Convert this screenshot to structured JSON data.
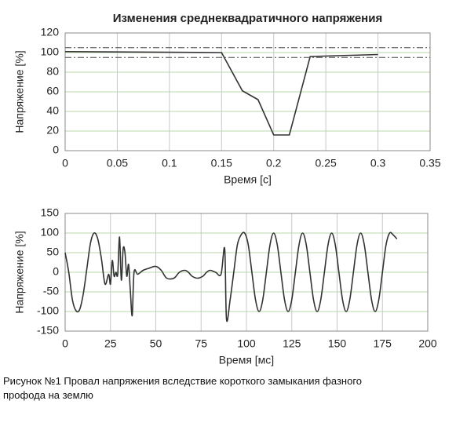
{
  "chart_data": [
    {
      "type": "line",
      "title": "Изменения среднеквадратичного напряжения",
      "xlabel": "Время [с]",
      "ylabel": "Напряжение [%]",
      "xlim": [
        0,
        0.35
      ],
      "xticks": [
        0,
        0.05,
        0.1,
        0.15,
        0.2,
        0.25,
        0.3,
        0.35
      ],
      "ylim": [
        0,
        120
      ],
      "yticks": [
        0,
        20,
        40,
        60,
        80,
        100,
        120
      ],
      "grid": true,
      "series": [
        {
          "color": "#333333",
          "style": "solid",
          "x": [
            0,
            0.15,
            0.17,
            0.185,
            0.2,
            0.215,
            0.235,
            0.3
          ],
          "values": [
            101,
            100,
            61,
            52,
            16,
            16,
            96,
            98
          ]
        },
        {
          "color": "#444444",
          "style": "dashdot",
          "x": [
            0,
            0.35
          ],
          "values": [
            105,
            105
          ]
        },
        {
          "color": "#444444",
          "style": "dashdot",
          "x": [
            0,
            0.35
          ],
          "values": [
            95,
            95
          ]
        }
      ]
    },
    {
      "type": "line",
      "xlabel": "Время [мс]",
      "ylabel": "Напряжение [%]",
      "xlim": [
        0,
        200
      ],
      "xticks": [
        0,
        25,
        50,
        75,
        100,
        125,
        150,
        175,
        200
      ],
      "ylim": [
        -150,
        150
      ],
      "yticks": [
        -150,
        -100,
        -50,
        0,
        50,
        100,
        150
      ],
      "grid": true,
      "series": [
        {
          "color": "#333333",
          "style": "solid",
          "x": [
            0,
            2,
            4,
            6,
            8,
            10,
            12,
            14,
            16,
            18,
            20,
            22,
            24,
            25,
            26,
            27,
            28,
            29,
            30,
            31,
            32,
            33,
            34,
            35,
            36,
            37,
            38,
            40,
            43,
            46,
            50,
            53,
            56,
            60,
            63,
            66,
            68,
            70,
            73,
            76,
            78,
            80,
            83,
            86,
            88,
            89,
            91,
            93,
            95,
            97,
            99,
            101,
            103,
            105,
            107,
            109,
            111,
            113,
            115,
            117,
            119,
            121,
            123,
            125,
            127,
            129,
            131,
            133,
            135,
            137,
            139,
            141,
            143,
            145,
            147,
            149,
            151,
            153,
            155,
            157,
            159,
            161,
            163,
            165,
            167,
            169,
            171,
            173,
            175,
            177,
            179,
            181,
            183
          ],
          "values": [
            50,
            0,
            -70,
            -98,
            -95,
            -55,
            10,
            75,
            100,
            85,
            35,
            -30,
            -5,
            -30,
            30,
            -10,
            0,
            -5,
            90,
            -20,
            60,
            50,
            -10,
            20,
            -50,
            -110,
            0,
            -5,
            5,
            10,
            15,
            5,
            -15,
            -15,
            0,
            5,
            0,
            -10,
            -15,
            -10,
            0,
            5,
            0,
            -5,
            60,
            -120,
            -70,
            0,
            70,
            95,
            100,
            70,
            0,
            -70,
            -100,
            -70,
            0,
            70,
            100,
            70,
            0,
            -70,
            -100,
            -70,
            0,
            70,
            100,
            70,
            0,
            -70,
            -100,
            -70,
            0,
            70,
            100,
            70,
            0,
            -70,
            -100,
            -70,
            0,
            70,
            100,
            70,
            0,
            -70,
            -100,
            -70,
            0,
            70,
            100,
            95,
            85
          ]
        }
      ]
    }
  ],
  "caption": [
    "Рисунок №1 Провал напряжения вследствие короткого замыкания фазного",
    "профода  на землю"
  ]
}
